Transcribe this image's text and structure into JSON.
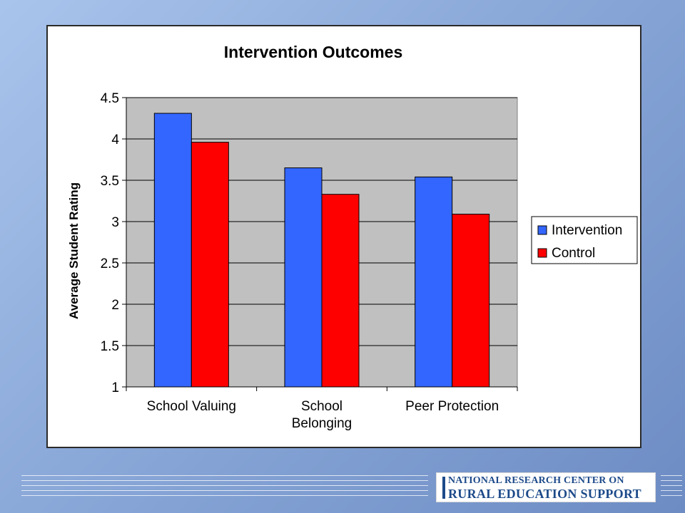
{
  "chart_data": {
    "type": "bar",
    "title": "Intervention Outcomes",
    "xlabel": "",
    "ylabel": "Average Student Rating",
    "categories": [
      [
        "School Valuing"
      ],
      [
        "School",
        "Belonging"
      ],
      [
        "Peer Protection"
      ]
    ],
    "series": [
      {
        "name": "Intervention",
        "color": "#3366ff",
        "values": [
          4.31,
          3.65,
          3.54
        ]
      },
      {
        "name": "Control",
        "color": "#ff0000",
        "values": [
          3.96,
          3.33,
          3.09
        ]
      }
    ],
    "ylim": [
      1,
      4.5
    ],
    "yticks": [
      "1",
      "1.5",
      "2",
      "2.5",
      "3",
      "3.5",
      "4",
      "4.5"
    ],
    "grid": true,
    "plot_background": "#c0c0c0",
    "legend_position": "right"
  },
  "footer": {
    "logo_line1": "NATIONAL RESEARCH CENTER ON",
    "logo_line2": "RURAL EDUCATION SUPPORT",
    "logo_color": "#1d4a8a"
  }
}
